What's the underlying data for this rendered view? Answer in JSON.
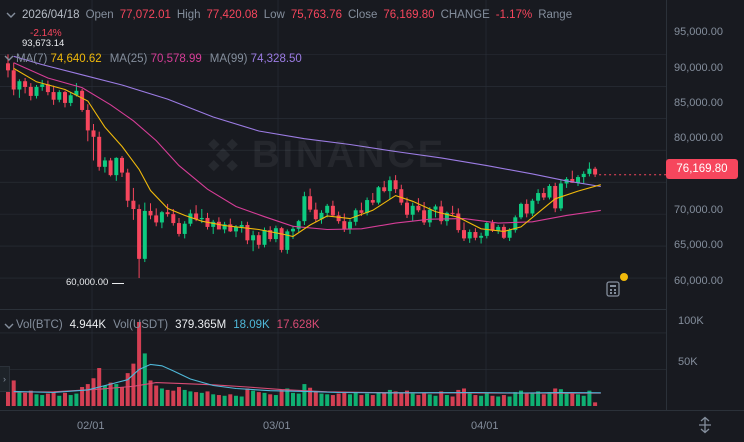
{
  "header": {
    "date": "2026/04/18",
    "open_label": "Open",
    "open_value": "77,072.01",
    "high_label": "High",
    "high_value": "77,420.08",
    "low_label": "Low",
    "low_value": "75,763.76",
    "close_label": "Close",
    "close_value": "76,169.80",
    "change_label": "CHANGE",
    "change_value": "-1.17%",
    "range_label": "Range"
  },
  "ma": {
    "ma7_label": "MA(7)",
    "ma7_value": "74,640.62",
    "ma25_label": "MA(25)",
    "ma25_value": "70,578.99",
    "ma99_label": "MA(99)",
    "ma99_value": "74,328.50"
  },
  "volume": {
    "btc_label": "Vol(BTC)",
    "btc_value": "4.944K",
    "usdt_label": "Vol(USDT)",
    "usdt_value": "379.365M",
    "ma1_value": "18.09K",
    "ma2_value": "17.628K"
  },
  "annotations": {
    "change_top": "-2.14%",
    "high_marker": "93,673.14",
    "low_marker": "60,000.00",
    "last_price": "76,169.80"
  },
  "price_axis": [
    "95,000.00",
    "90,000.00",
    "85,000.00",
    "80,000.00",
    "70,000.00",
    "65,000.00",
    "60,000.00"
  ],
  "volume_axis": [
    "100K",
    "50K"
  ],
  "time_axis": [
    "02/01",
    "03/01",
    "04/01"
  ],
  "watermark": "BINANCE",
  "colors": {
    "up": "#0ecb81",
    "down": "#f6465d",
    "ma7": "#f0b90b",
    "ma25": "#d63d97",
    "ma99": "#9c7ce4",
    "vol_ma1": "#4fb8d9",
    "vol_ma2": "#d94c75",
    "background": "#181a20",
    "grid": "#2b3139"
  },
  "chart_data": {
    "type": "candlestick",
    "interval": "1d",
    "price_range": [
      57500,
      98500
    ],
    "volume_range": [
      0,
      115000
    ],
    "candles": [
      [
        93600,
        95000,
        91400,
        92500,
        22000
      ],
      [
        92500,
        93700,
        88600,
        89500,
        35000
      ],
      [
        89500,
        91100,
        88200,
        90800,
        20000
      ],
      [
        90800,
        91300,
        88900,
        89900,
        18000
      ],
      [
        89900,
        90500,
        87800,
        88500,
        21000
      ],
      [
        88500,
        90200,
        88100,
        89900,
        16000
      ],
      [
        89900,
        91000,
        89300,
        90300,
        15000
      ],
      [
        90300,
        90900,
        88600,
        89100,
        17000
      ],
      [
        89100,
        90100,
        87100,
        87900,
        19000
      ],
      [
        87900,
        89400,
        87500,
        89100,
        14000
      ],
      [
        89100,
        89300,
        86700,
        87400,
        18000
      ],
      [
        87400,
        89100,
        86900,
        88600,
        15000
      ],
      [
        88600,
        90500,
        88400,
        89300,
        17000
      ],
      [
        89300,
        89600,
        86000,
        86300,
        26000
      ],
      [
        86300,
        87200,
        81400,
        83100,
        30000
      ],
      [
        83100,
        84100,
        78400,
        82100,
        38000
      ],
      [
        82100,
        82900,
        76800,
        77400,
        52000
      ],
      [
        77400,
        78900,
        76500,
        78400,
        28000
      ],
      [
        78400,
        78800,
        75900,
        76100,
        32000
      ],
      [
        76100,
        78900,
        75200,
        78800,
        30000
      ],
      [
        78800,
        79100,
        75800,
        76500,
        26000
      ],
      [
        76500,
        77100,
        71100,
        72100,
        45000
      ],
      [
        72100,
        74100,
        69100,
        70800,
        58000
      ],
      [
        70800,
        71500,
        60000,
        63000,
        115000
      ],
      [
        63000,
        71800,
        62500,
        70500,
        72000
      ],
      [
        70500,
        71700,
        69200,
        69800,
        35000
      ],
      [
        69800,
        70900,
        68100,
        68700,
        28000
      ],
      [
        68700,
        70500,
        67800,
        70300,
        24000
      ],
      [
        70300,
        71600,
        69600,
        70000,
        22000
      ],
      [
        70000,
        70800,
        68200,
        68600,
        21000
      ],
      [
        68600,
        69400,
        66500,
        66900,
        26000
      ],
      [
        66900,
        68900,
        66200,
        68500,
        22000
      ],
      [
        68500,
        70700,
        68100,
        70100,
        20000
      ],
      [
        70100,
        71400,
        68900,
        69200,
        19000
      ],
      [
        69200,
        70800,
        68600,
        69400,
        18000
      ],
      [
        69400,
        70200,
        67600,
        68000,
        20000
      ],
      [
        68000,
        69100,
        66900,
        68800,
        16000
      ],
      [
        68800,
        69500,
        67800,
        67600,
        15000
      ],
      [
        67600,
        68800,
        67000,
        68400,
        14000
      ],
      [
        68400,
        69300,
        67200,
        67300,
        16000
      ],
      [
        67300,
        68300,
        66400,
        68000,
        14000
      ],
      [
        68000,
        68900,
        67100,
        68300,
        13000
      ],
      [
        68300,
        68800,
        65300,
        65900,
        24000
      ],
      [
        65900,
        67400,
        64200,
        66700,
        21000
      ],
      [
        66700,
        67200,
        64600,
        65200,
        19000
      ],
      [
        65200,
        67900,
        64800,
        67500,
        18000
      ],
      [
        67500,
        68100,
        65700,
        66100,
        16000
      ],
      [
        66100,
        68200,
        65600,
        67800,
        15000
      ],
      [
        67800,
        68000,
        64000,
        64400,
        22000
      ],
      [
        64400,
        67600,
        63800,
        67300,
        24000
      ],
      [
        67300,
        68200,
        66100,
        67700,
        18000
      ],
      [
        67700,
        69100,
        67200,
        68900,
        17000
      ],
      [
        68900,
        73500,
        68300,
        72800,
        30000
      ],
      [
        72800,
        74000,
        70300,
        70700,
        25000
      ],
      [
        70700,
        71800,
        68800,
        69200,
        20000
      ],
      [
        69200,
        70600,
        68500,
        70200,
        17000
      ],
      [
        70200,
        71600,
        69500,
        71300,
        16000
      ],
      [
        71300,
        72100,
        69600,
        69800,
        15000
      ],
      [
        69800,
        70400,
        68500,
        68900,
        17000
      ],
      [
        68900,
        70100,
        67200,
        67600,
        19000
      ],
      [
        67600,
        69200,
        66900,
        68800,
        16000
      ],
      [
        68800,
        70900,
        68200,
        70600,
        18000
      ],
      [
        70600,
        71800,
        69700,
        70200,
        15000
      ],
      [
        70200,
        72600,
        69800,
        72200,
        17000
      ],
      [
        72200,
        73300,
        71400,
        71800,
        15000
      ],
      [
        71800,
        74400,
        71500,
        74200,
        19000
      ],
      [
        74200,
        75200,
        73400,
        73600,
        18000
      ],
      [
        73600,
        75900,
        72300,
        75300,
        22000
      ],
      [
        75300,
        76100,
        73300,
        73900,
        20000
      ],
      [
        73900,
        74600,
        71400,
        71800,
        18000
      ],
      [
        71800,
        72600,
        69400,
        69900,
        21000
      ],
      [
        69900,
        71800,
        68900,
        71300,
        17000
      ],
      [
        71300,
        72500,
        70300,
        70600,
        15000
      ],
      [
        70600,
        71900,
        68300,
        68700,
        18000
      ],
      [
        68700,
        71100,
        68000,
        70700,
        16000
      ],
      [
        70700,
        71500,
        69500,
        71200,
        14000
      ],
      [
        71200,
        72100,
        68400,
        68900,
        20000
      ],
      [
        68900,
        70400,
        68200,
        70200,
        15000
      ],
      [
        70200,
        71300,
        69700,
        70100,
        13000
      ],
      [
        70100,
        70900,
        67100,
        67500,
        22000
      ],
      [
        67500,
        68700,
        65800,
        66200,
        24000
      ],
      [
        66200,
        67600,
        65500,
        67200,
        17000
      ],
      [
        67200,
        67800,
        65900,
        66300,
        15000
      ],
      [
        66300,
        67100,
        65400,
        66600,
        14000
      ],
      [
        66600,
        68900,
        66200,
        68600,
        18000
      ],
      [
        68600,
        69100,
        67200,
        67400,
        14000
      ],
      [
        67400,
        68300,
        66900,
        68000,
        13000
      ],
      [
        68000,
        68400,
        66100,
        66300,
        15000
      ],
      [
        66300,
        67800,
        65800,
        67500,
        13000
      ],
      [
        67500,
        69800,
        67100,
        69500,
        19000
      ],
      [
        69500,
        71800,
        69200,
        71600,
        21000
      ],
      [
        71600,
        72300,
        69500,
        70100,
        17000
      ],
      [
        70100,
        72400,
        69700,
        72100,
        18000
      ],
      [
        72100,
        73900,
        71600,
        73300,
        20000
      ],
      [
        73300,
        74100,
        72200,
        72600,
        16000
      ],
      [
        72600,
        74700,
        72300,
        74400,
        19000
      ],
      [
        74400,
        74900,
        70300,
        70900,
        24000
      ],
      [
        70900,
        75300,
        70500,
        74800,
        23000
      ],
      [
        74800,
        75800,
        74100,
        75500,
        18000
      ],
      [
        75500,
        76800,
        74900,
        74900,
        17000
      ],
      [
        74900,
        76100,
        74400,
        75800,
        16000
      ],
      [
        75800,
        76700,
        74800,
        76300,
        14000
      ],
      [
        76300,
        78100,
        75900,
        77100,
        21000
      ],
      [
        77100,
        77400,
        75800,
        76200,
        5000
      ]
    ],
    "ma7": [
      [
        1,
        92800
      ],
      [
        5,
        90700
      ],
      [
        10,
        89500
      ],
      [
        14,
        87700
      ],
      [
        17,
        83600
      ],
      [
        20,
        80600
      ],
      [
        23,
        77000
      ],
      [
        25,
        73700
      ],
      [
        28,
        70900
      ],
      [
        31,
        69800
      ],
      [
        34,
        68900
      ],
      [
        38,
        68200
      ],
      [
        44,
        67600
      ],
      [
        48,
        66900
      ],
      [
        50,
        66500
      ],
      [
        53,
        68300
      ],
      [
        56,
        69700
      ],
      [
        60,
        69300
      ],
      [
        64,
        70600
      ],
      [
        68,
        72900
      ],
      [
        71,
        72000
      ],
      [
        75,
        70400
      ],
      [
        79,
        69500
      ],
      [
        83,
        67700
      ],
      [
        87,
        67300
      ],
      [
        90,
        68000
      ],
      [
        93,
        70200
      ],
      [
        96,
        72400
      ],
      [
        100,
        73600
      ],
      [
        104,
        74600
      ]
    ],
    "ma25": [
      [
        1,
        93700
      ],
      [
        7,
        91300
      ],
      [
        13,
        89800
      ],
      [
        18,
        87100
      ],
      [
        22,
        84600
      ],
      [
        26,
        81500
      ],
      [
        30,
        77600
      ],
      [
        35,
        73900
      ],
      [
        40,
        71200
      ],
      [
        45,
        69600
      ],
      [
        50,
        68100
      ],
      [
        56,
        67600
      ],
      [
        62,
        67700
      ],
      [
        68,
        68600
      ],
      [
        74,
        69200
      ],
      [
        80,
        69300
      ],
      [
        86,
        68600
      ],
      [
        92,
        68800
      ],
      [
        98,
        69800
      ],
      [
        104,
        70580
      ]
    ],
    "ma99": [
      [
        1,
        94700
      ],
      [
        6,
        93400
      ],
      [
        13,
        91800
      ],
      [
        20,
        90200
      ],
      [
        28,
        88000
      ],
      [
        36,
        85200
      ],
      [
        44,
        83000
      ],
      [
        52,
        81800
      ],
      [
        60,
        80900
      ],
      [
        68,
        79800
      ],
      [
        76,
        78800
      ],
      [
        84,
        77600
      ],
      [
        92,
        76300
      ],
      [
        98,
        75200
      ],
      [
        104,
        74330
      ]
    ],
    "vol_ma1": [
      [
        1,
        20000
      ],
      [
        8,
        18500
      ],
      [
        14,
        22000
      ],
      [
        18,
        30000
      ],
      [
        21,
        36000
      ],
      [
        23,
        50000
      ],
      [
        25,
        57000
      ],
      [
        27,
        55000
      ],
      [
        29,
        48000
      ],
      [
        32,
        37000
      ],
      [
        36,
        28000
      ],
      [
        40,
        24000
      ],
      [
        46,
        21000
      ],
      [
        52,
        20000
      ],
      [
        58,
        18500
      ],
      [
        66,
        18000
      ],
      [
        74,
        18200
      ],
      [
        82,
        18500
      ],
      [
        90,
        17800
      ],
      [
        97,
        18300
      ],
      [
        104,
        18090
      ]
    ],
    "vol_ma2": [
      [
        1,
        19000
      ],
      [
        8,
        19500
      ],
      [
        16,
        23000
      ],
      [
        22,
        27000
      ],
      [
        26,
        32000
      ],
      [
        30,
        31000
      ],
      [
        36,
        29000
      ],
      [
        42,
        26000
      ],
      [
        48,
        22500
      ],
      [
        56,
        19500
      ],
      [
        64,
        18500
      ],
      [
        72,
        18000
      ],
      [
        80,
        17900
      ],
      [
        88,
        17600
      ],
      [
        96,
        17500
      ],
      [
        104,
        17628
      ]
    ]
  }
}
